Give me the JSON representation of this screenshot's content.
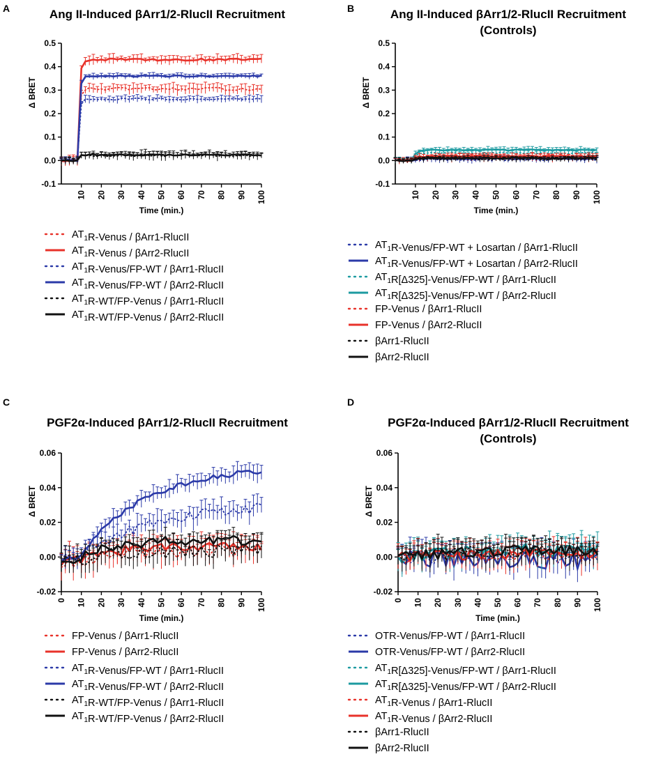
{
  "chart_data": [
    {
      "panel": "A",
      "type": "line",
      "title": "Ang II-Induced βArr1/2-RlucII Recruitment",
      "subtitle": "",
      "xlabel": "Time (min.)",
      "ylabel": "Δ BRET",
      "xlim": [
        0,
        100
      ],
      "ylim": [
        -0.1,
        0.5
      ],
      "xticks": [
        10,
        20,
        30,
        40,
        50,
        60,
        70,
        80,
        90,
        100
      ],
      "yticks": [
        -0.1,
        0.0,
        0.1,
        0.2,
        0.3,
        0.4,
        0.5
      ],
      "ytick_labels": [
        "-0.1",
        "0.0",
        "0.1",
        "0.2",
        "0.3",
        "0.4",
        "0.5"
      ],
      "stimulus_time": 8,
      "series": [
        {
          "name": "AT₁R-Venus / βArr1-RlucII",
          "color": "#e8322a",
          "style": "dotted",
          "baseline": 0.0,
          "plateau": 0.305,
          "rate": 1.2,
          "error": 0.018,
          "noise": 0.006
        },
        {
          "name": "AT₁R-Venus / βArr2-RlucII",
          "color": "#e8322a",
          "style": "solid",
          "baseline": 0.0,
          "plateau": 0.43,
          "rate": 1.2,
          "error": 0.016,
          "noise": 0.005
        },
        {
          "name": "AT₁R-Venus/FP-WT / βArr1-RlucII",
          "color": "#2b3aa8",
          "style": "dotted",
          "baseline": 0.0,
          "plateau": 0.262,
          "rate": 1.2,
          "error": 0.012,
          "noise": 0.004
        },
        {
          "name": "AT₁R-Venus/FP-WT / βArr2-RlucII",
          "color": "#2b3aa8",
          "style": "solid",
          "baseline": 0.0,
          "plateau": 0.36,
          "rate": 1.2,
          "error": 0.01,
          "noise": 0.003
        },
        {
          "name": "AT₁R-WT/FP-Venus / βArr1-RlucII",
          "color": "#111111",
          "style": "dotted",
          "baseline": 0.0,
          "plateau": 0.022,
          "rate": 1.2,
          "error": 0.015,
          "noise": 0.005
        },
        {
          "name": "AT₁R-WT/FP-Venus / βArr2-RlucII",
          "color": "#111111",
          "style": "solid",
          "baseline": 0.0,
          "plateau": 0.024,
          "rate": 1.2,
          "error": 0.01,
          "noise": 0.003
        }
      ]
    },
    {
      "panel": "B",
      "type": "line",
      "title": "Ang II-Induced βArr1/2-RlucII Recruitment",
      "subtitle": "(Controls)",
      "xlabel": "Time (min.)",
      "ylabel": "Δ BRET",
      "xlim": [
        0,
        100
      ],
      "ylim": [
        -0.1,
        0.5
      ],
      "xticks": [
        10,
        20,
        30,
        40,
        50,
        60,
        70,
        80,
        90,
        100
      ],
      "yticks": [
        -0.1,
        0.0,
        0.1,
        0.2,
        0.3,
        0.4,
        0.5
      ],
      "ytick_labels": [
        "-0.1",
        "0.0",
        "0.1",
        "0.2",
        "0.3",
        "0.4",
        "0.5"
      ],
      "stimulus_time": 8,
      "series": [
        {
          "name": "AT₁R-Venus/FP-WT + Losartan / βArr1-RlucII",
          "color": "#2b3aa8",
          "style": "dotted",
          "baseline": 0.0,
          "plateau": 0.004,
          "rate": 0.3,
          "error": 0.01,
          "noise": 0.004
        },
        {
          "name": "AT₁R-Venus/FP-WT + Losartan / βArr2-RlucII",
          "color": "#2b3aa8",
          "style": "solid",
          "baseline": 0.0,
          "plateau": 0.008,
          "rate": 0.3,
          "error": 0.008,
          "noise": 0.003
        },
        {
          "name": "AT₁R[Δ325]-Venus/FP-WT / βArr1-RlucII",
          "color": "#1c9aa0",
          "style": "dotted",
          "baseline": 0.0,
          "plateau": 0.032,
          "rate": 0.5,
          "error": 0.01,
          "noise": 0.004
        },
        {
          "name": "AT₁R[Δ325]-Venus/FP-WT / βArr2-RlucII",
          "color": "#1c9aa0",
          "style": "solid",
          "baseline": 0.0,
          "plateau": 0.045,
          "rate": 0.5,
          "error": 0.01,
          "noise": 0.003
        },
        {
          "name": "FP-Venus / βArr1-RlucII",
          "color": "#e8322a",
          "style": "dotted",
          "baseline": 0.0,
          "plateau": 0.012,
          "rate": 0.5,
          "error": 0.012,
          "noise": 0.004
        },
        {
          "name": "FP-Venus / βArr2-RlucII",
          "color": "#e8322a",
          "style": "solid",
          "baseline": 0.0,
          "plateau": 0.018,
          "rate": 0.5,
          "error": 0.01,
          "noise": 0.003
        },
        {
          "name": "βArr1-RlucII",
          "color": "#111111",
          "style": "dotted",
          "baseline": 0.0,
          "plateau": 0.006,
          "rate": 0.5,
          "error": 0.008,
          "noise": 0.003
        },
        {
          "name": "βArr2-RlucII",
          "color": "#111111",
          "style": "solid",
          "baseline": 0.0,
          "plateau": 0.01,
          "rate": 0.5,
          "error": 0.008,
          "noise": 0.003
        }
      ]
    },
    {
      "panel": "C",
      "type": "line",
      "title": "PGF2α-Induced βArr1/2-RlucII Recruitment",
      "subtitle": "",
      "xlabel": "Time (min.)",
      "ylabel": "Δ BRET",
      "xlim": [
        0,
        100
      ],
      "ylim": [
        -0.02,
        0.06
      ],
      "xticks": [
        0,
        10,
        20,
        30,
        40,
        50,
        60,
        70,
        80,
        90,
        100
      ],
      "yticks": [
        -0.02,
        0.0,
        0.02,
        0.04,
        0.06
      ],
      "ytick_labels": [
        "-0.02",
        "0.00",
        "0.02",
        "0.04",
        "0.06"
      ],
      "stimulus_time": 8,
      "series": [
        {
          "name": "FP-Venus / βArr1-RlucII",
          "color": "#e8322a",
          "style": "dotted",
          "baseline": -0.002,
          "plateau": 0.004,
          "rate": 0.05,
          "error": 0.006,
          "noise": 0.004
        },
        {
          "name": "FP-Venus / βArr2-RlucII",
          "color": "#e8322a",
          "style": "solid",
          "baseline": -0.002,
          "plateau": 0.006,
          "rate": 0.05,
          "error": 0.005,
          "noise": 0.003
        },
        {
          "name": "AT₁R-Venus/FP-WT / βArr1-RlucII",
          "color": "#2b3aa8",
          "style": "dotted",
          "baseline": -0.001,
          "plateau": 0.032,
          "rate": 0.025,
          "error": 0.005,
          "noise": 0.003
        },
        {
          "name": "AT₁R-Venus/FP-WT / βArr2-RlucII",
          "color": "#2b3aa8",
          "style": "solid",
          "baseline": -0.001,
          "plateau": 0.053,
          "rate": 0.03,
          "error": 0.004,
          "noise": 0.0015
        },
        {
          "name": "AT₁R-WT/FP-Venus / βArr1-RlucII",
          "color": "#111111",
          "style": "dotted",
          "baseline": -0.002,
          "plateau": 0.004,
          "rate": 0.05,
          "error": 0.006,
          "noise": 0.004
        },
        {
          "name": "AT₁R-WT/FP-Venus / βArr2-RlucII",
          "color": "#111111",
          "style": "solid",
          "baseline": -0.001,
          "plateau": 0.01,
          "rate": 0.06,
          "error": 0.004,
          "noise": 0.003
        }
      ]
    },
    {
      "panel": "D",
      "type": "line",
      "title": "PGF2α-Induced βArr1/2-RlucII Recruitment",
      "subtitle": "(Controls)",
      "xlabel": "Time (min.)",
      "ylabel": "Δ BRET",
      "xlim": [
        0,
        100
      ],
      "ylim": [
        -0.02,
        0.06
      ],
      "xticks": [
        0,
        10,
        20,
        30,
        40,
        50,
        60,
        70,
        80,
        90,
        100
      ],
      "yticks": [
        -0.02,
        0.0,
        0.02,
        0.04,
        0.06
      ],
      "ytick_labels": [
        "-0.02",
        "0.00",
        "0.02",
        "0.04",
        "0.06"
      ],
      "stimulus_time": 8,
      "series": [
        {
          "name": "OTR-Venus/FP-WT / βArr1-RlucII",
          "color": "#2b3aa8",
          "style": "dotted",
          "baseline": 0.0,
          "plateau": 0.0,
          "rate": 0.05,
          "error": 0.006,
          "noise": 0.004
        },
        {
          "name": "OTR-Venus/FP-WT / βArr2-RlucII",
          "color": "#2b3aa8",
          "style": "solid",
          "baseline": 0.0,
          "plateau": -0.002,
          "rate": 0.05,
          "error": 0.006,
          "noise": 0.005
        },
        {
          "name": "AT₁R[Δ325]-Venus/FP-WT / βArr1-RlucII",
          "color": "#1c9aa0",
          "style": "dotted",
          "baseline": 0.0,
          "plateau": 0.003,
          "rate": 0.05,
          "error": 0.006,
          "noise": 0.004
        },
        {
          "name": "AT₁R[Δ325]-Venus/FP-WT / βArr2-RlucII",
          "color": "#1c9aa0",
          "style": "solid",
          "baseline": 0.0,
          "plateau": 0.004,
          "rate": 0.05,
          "error": 0.006,
          "noise": 0.004
        },
        {
          "name": "AT₁R-Venus / βArr1-RlucII",
          "color": "#e8322a",
          "style": "dotted",
          "baseline": 0.0,
          "plateau": 0.001,
          "rate": 0.05,
          "error": 0.006,
          "noise": 0.004
        },
        {
          "name": "AT₁R-Venus / βArr2-RlucII",
          "color": "#e8322a",
          "style": "solid",
          "baseline": 0.0,
          "plateau": 0.002,
          "rate": 0.05,
          "error": 0.005,
          "noise": 0.003
        },
        {
          "name": "βArr1-RlucII",
          "color": "#111111",
          "style": "dotted",
          "baseline": 0.0,
          "plateau": 0.003,
          "rate": 0.05,
          "error": 0.006,
          "noise": 0.004
        },
        {
          "name": "βArr2-RlucII",
          "color": "#111111",
          "style": "solid",
          "baseline": 0.0,
          "plateau": 0.004,
          "rate": 0.05,
          "error": 0.005,
          "noise": 0.003
        }
      ]
    }
  ]
}
